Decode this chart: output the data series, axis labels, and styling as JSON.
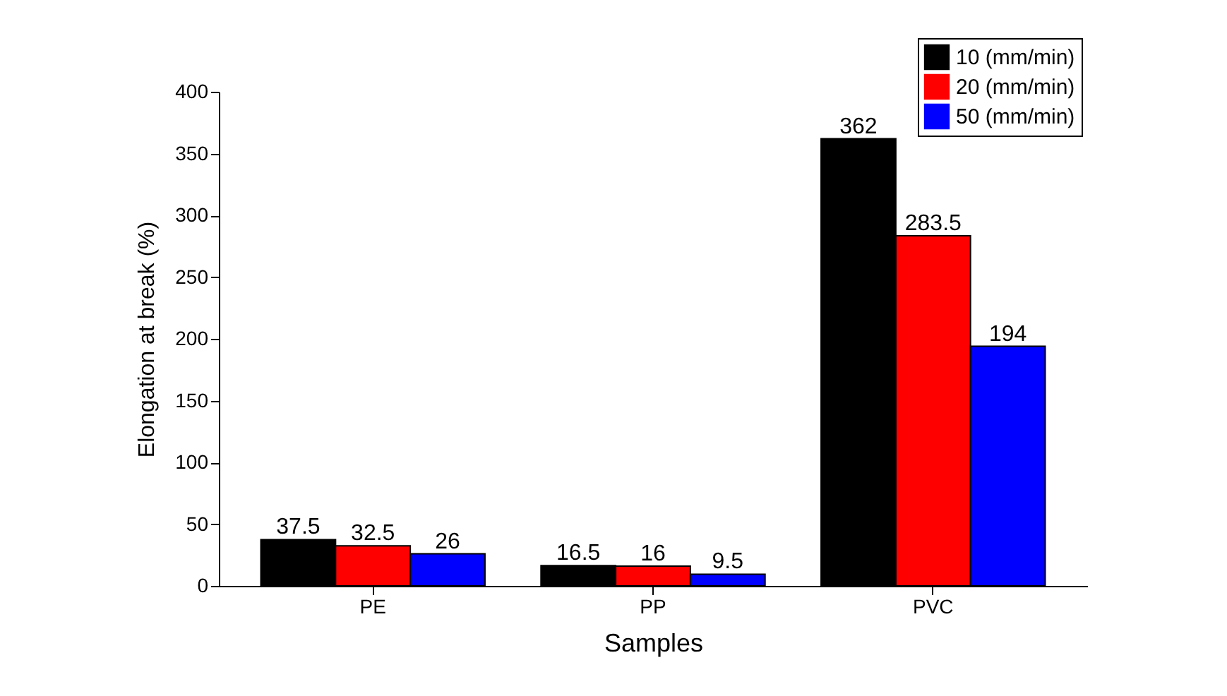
{
  "chart_data": {
    "type": "bar",
    "xlabel": "Samples",
    "ylabel": "Elongation at break (%)",
    "categories": [
      "PE",
      "PP",
      "PVC"
    ],
    "series": [
      {
        "name": "10 (mm/min)",
        "color": "#000000",
        "values": [
          37.5,
          16.5,
          362
        ]
      },
      {
        "name": "20 (mm/min)",
        "color": "#ff0000",
        "values": [
          32.5,
          16,
          283.5
        ]
      },
      {
        "name": "50 (mm/min)",
        "color": "#0000ff",
        "values": [
          26,
          9.5,
          194
        ]
      }
    ],
    "ylim": [
      0,
      400
    ],
    "yticks": [
      0,
      50,
      100,
      150,
      200,
      250,
      300,
      350,
      400
    ],
    "data_labels": true,
    "legend": "top right",
    "grid": false
  }
}
